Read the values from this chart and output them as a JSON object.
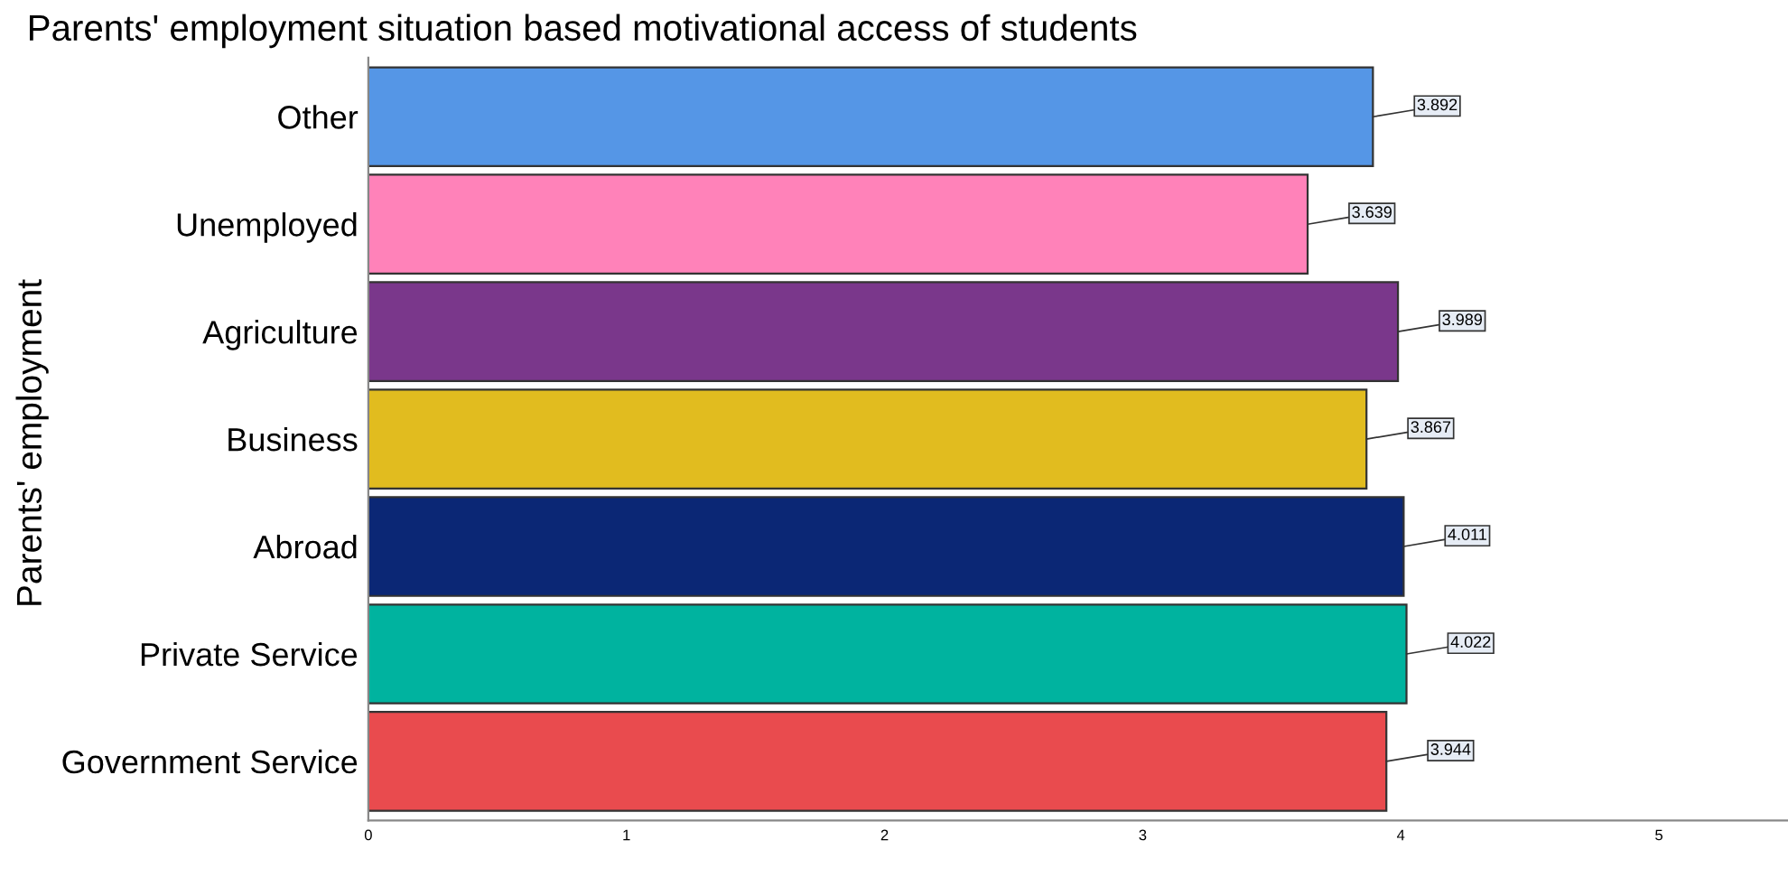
{
  "chart_data": {
    "type": "bar",
    "orientation": "horizontal",
    "title": "Parents' employment situation based motivational access of students",
    "ylabel": "Parents' employment",
    "categories": [
      "Other",
      "Unemployed",
      "Agriculture",
      "Business",
      "Abroad",
      "Private Service",
      "Government Service"
    ],
    "values": [
      3.892,
      3.639,
      3.989,
      3.867,
      4.011,
      4.022,
      3.944
    ],
    "colors": [
      "#5596e6",
      "#ff82b9",
      "#7a378b",
      "#e1bc1f",
      "#0b2775",
      "#00b39f",
      "#e94b4e"
    ],
    "data_labels": true,
    "xlim": [
      0,
      5.5
    ],
    "xticks": [
      0,
      1,
      2,
      3,
      4,
      5
    ],
    "grid": false,
    "legend": false
  }
}
